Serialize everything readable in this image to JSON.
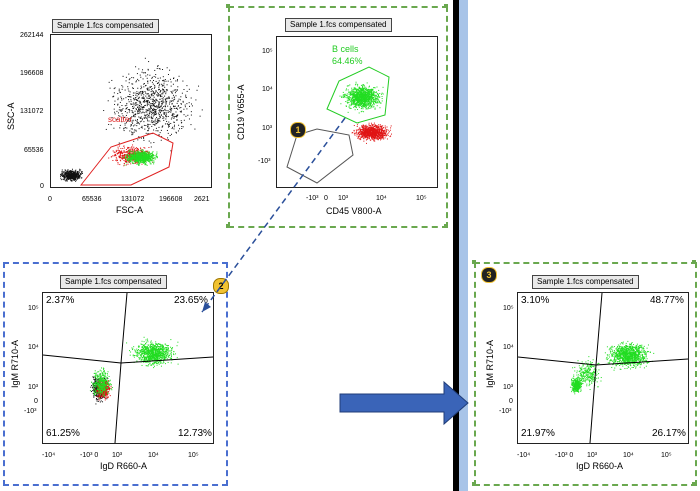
{
  "plot1": {
    "title": "Sample 1.fcs compensated",
    "x_label": "FSC-A",
    "y_label": "SSC-A",
    "x_ticks": [
      "0",
      "65536",
      "131072",
      "196608",
      "2621"
    ],
    "y_ticks": [
      "262144",
      "196608",
      "131072",
      "65536",
      "0"
    ],
    "gate_label": "scatter",
    "gate_color": "#e02020"
  },
  "plot2": {
    "title": "Sample 1.fcs compensated",
    "x_label": "CD45 V800-A",
    "y_label": "CD19 V655-A",
    "x_ticks": [
      "-10³",
      "0",
      "10³",
      "10⁴",
      "10⁵"
    ],
    "y_ticks": [
      "10⁵",
      "10⁴",
      "10³",
      "-10³"
    ],
    "gate_label": "B cells",
    "gate_pct": "64.46%",
    "gate_color": "#22cc22",
    "step": "1"
  },
  "plot3": {
    "title": "Sample 1.fcs compensated",
    "x_label": "IgD R660-A",
    "y_label": "IgM R710-A",
    "x_ticks": [
      "-10⁴",
      "-10³ 0",
      "10³",
      "10⁴",
      "10⁵"
    ],
    "y_ticks": [
      "10⁵",
      "10⁴",
      "10³",
      "0",
      "-10³"
    ],
    "q_ul": "2.37%",
    "q_ur": "23.65%",
    "q_ll": "61.25%",
    "q_lr": "12.73%",
    "step": "2"
  },
  "plot4": {
    "title": "Sample 1.fcs compensated",
    "x_label": "IgD R660-A",
    "y_label": "IgM R710-A",
    "x_ticks": [
      "-10⁴",
      "-10³ 0",
      "10³",
      "10⁴",
      "10⁵"
    ],
    "y_ticks": [
      "10⁵",
      "10⁴",
      "10³",
      "0",
      "-10³"
    ],
    "q_ul": "3.10%",
    "q_ur": "48.77%",
    "q_ll": "21.97%",
    "q_lr": "26.17%",
    "step": "3"
  },
  "colors": {
    "gated": "#22dd22",
    "ungated_red": "#e01515",
    "scatter_black": "#111111",
    "arrow_blue": "#3a64b8",
    "divider_blue": "#a8c4e8"
  }
}
